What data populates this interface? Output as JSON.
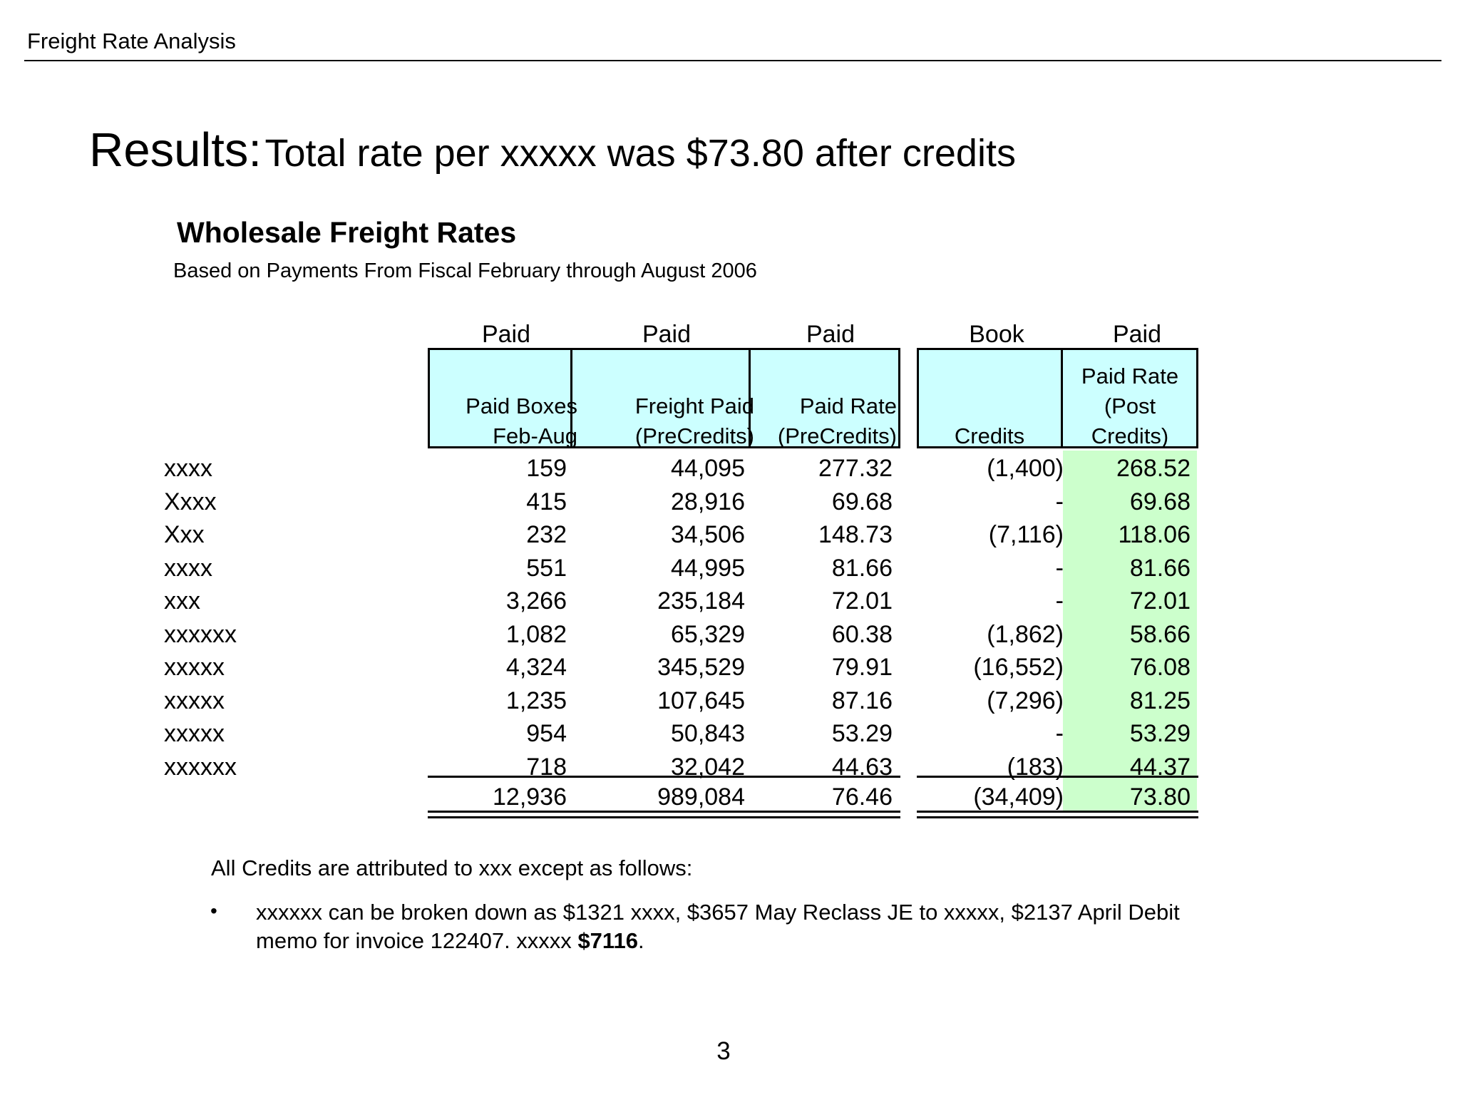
{
  "header": {
    "title": "Freight Rate Analysis"
  },
  "headline": {
    "lead": "Results:",
    "rest": "Total rate per xxxxx was $73.80 after credits"
  },
  "table": {
    "title": "Wholesale Freight Rates",
    "subtitle": "Based on Payments From Fiscal February through August 2006",
    "top_labels": [
      "Paid",
      "Paid",
      "Paid",
      "Book",
      "Paid"
    ],
    "columns": [
      {
        "lines": [
          "Paid Boxes",
          "Feb-Aug"
        ]
      },
      {
        "lines": [
          "Freight Paid",
          "(PreCredits)"
        ]
      },
      {
        "lines": [
          "Paid Rate",
          "(PreCredits)"
        ]
      },
      {
        "lines": [
          "Credits"
        ]
      },
      {
        "lines": [
          "Paid Rate",
          "(Post",
          "Credits)"
        ]
      }
    ],
    "rows": [
      {
        "label": "xxxx",
        "boxes": "159",
        "freight": "44,095",
        "rate": "277.32",
        "credits": "(1,400)",
        "post": "268.52"
      },
      {
        "label": "Xxxx",
        "boxes": "415",
        "freight": "28,916",
        "rate": "69.68",
        "credits": "-",
        "post": "69.68"
      },
      {
        "label": "Xxx",
        "boxes": "232",
        "freight": "34,506",
        "rate": "148.73",
        "credits": "(7,116)",
        "post": "118.06"
      },
      {
        "label": "xxxx",
        "boxes": "551",
        "freight": "44,995",
        "rate": "81.66",
        "credits": "-",
        "post": "81.66"
      },
      {
        "label": "xxx",
        "boxes": "3,266",
        "freight": "235,184",
        "rate": "72.01",
        "credits": "-",
        "post": "72.01"
      },
      {
        "label": "xxxxxx",
        "boxes": "1,082",
        "freight": "65,329",
        "rate": "60.38",
        "credits": "(1,862)",
        "post": "58.66"
      },
      {
        "label": "xxxxx",
        "boxes": "4,324",
        "freight": "345,529",
        "rate": "79.91",
        "credits": "(16,552)",
        "post": "76.08"
      },
      {
        "label": "xxxxx",
        "boxes": "1,235",
        "freight": "107,645",
        "rate": "87.16",
        "credits": "(7,296)",
        "post": "81.25"
      },
      {
        "label": "xxxxx",
        "boxes": "954",
        "freight": "50,843",
        "rate": "53.29",
        "credits": "-",
        "post": "53.29"
      },
      {
        "label": "xxxxxx",
        "boxes": "718",
        "freight": "32,042",
        "rate": "44.63",
        "credits": "(183)",
        "post": "44.37"
      }
    ],
    "total": {
      "boxes": "12,936",
      "freight": "989,084",
      "rate": "76.46",
      "credits": "(34,409)",
      "post": "73.80"
    }
  },
  "notes": {
    "intro": "All Credits are attributed to xxx except as follows:",
    "bullet_symbol": "•",
    "line1": "xxxxxx can be broken down as $1321 xxxx, $3657 May Reclass JE to xxxxx, $2137 April Debit",
    "line2_text": "memo for invoice 122407.  xxxxx ",
    "line2_bold": "$7116",
    "line2_end": "."
  },
  "page_number": "3",
  "colors": {
    "header_fill": "#ccffff",
    "post_credit_fill": "#ccffcc"
  }
}
